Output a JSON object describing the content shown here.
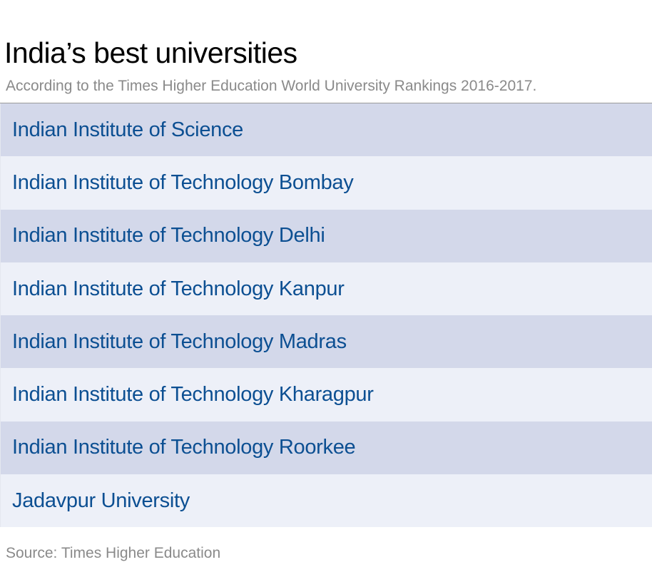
{
  "chart_data": {
    "type": "table",
    "title": "India’s best universities",
    "subtitle": "According to the Times Higher Education World University Rankings 2016-2017.",
    "rows": [
      "Indian Institute of Science",
      "Indian Institute of Technology Bombay",
      "Indian Institute of Technology Delhi",
      "Indian Institute of Technology Kanpur",
      "Indian Institute of Technology Madras",
      "Indian Institute of Technology Kharagpur",
      "Indian Institute of Technology Roorkee",
      "Jadavpur University"
    ],
    "source": "Source: Times Higher Education"
  },
  "colors": {
    "row_odd": "#d3d8ea",
    "row_even": "#edf0f8",
    "text_link": "#0c4f92",
    "muted_text": "#8a8a8a"
  }
}
